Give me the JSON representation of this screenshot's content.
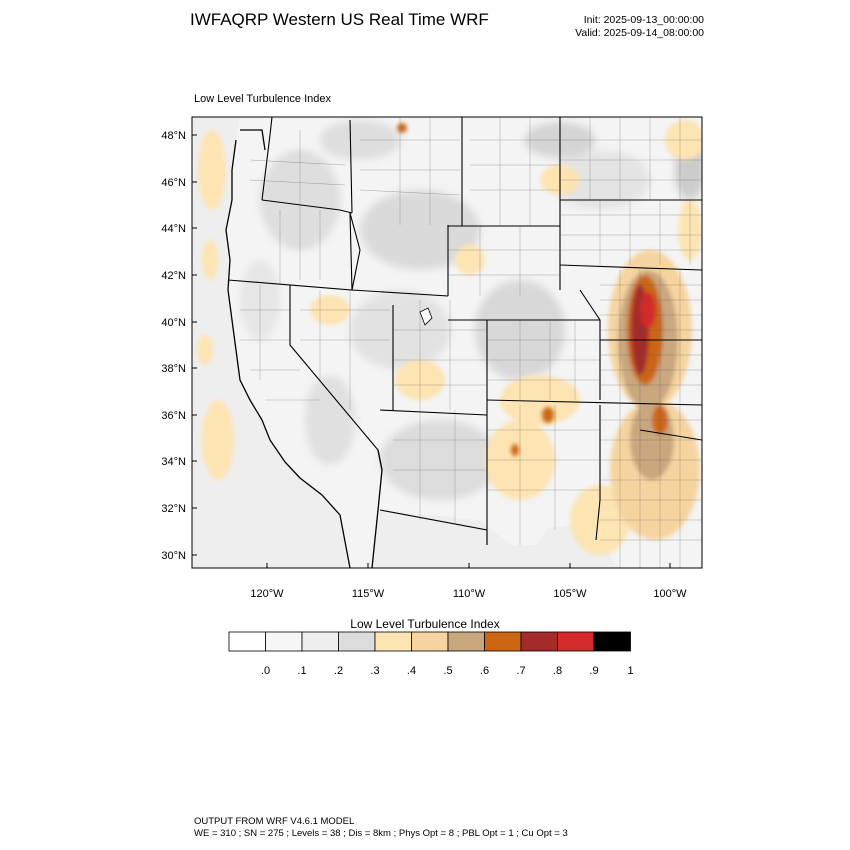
{
  "header": {
    "title": "IWFAQRP Western US Real Time WRF",
    "init": "Init: 2025-09-13_00:00:00",
    "valid": "Valid: 2025-09-14_08:00:00"
  },
  "plot": {
    "title": "Low Level Turbulence Index",
    "lat_labels": [
      "48°N",
      "46°N",
      "44°N",
      "42°N",
      "40°N",
      "38°N",
      "36°N",
      "34°N",
      "32°N",
      "30°N"
    ],
    "lon_labels": [
      "120°W",
      "115°W",
      "110°W",
      "105°W",
      "100°W"
    ]
  },
  "colorbar": {
    "title": "Low Level Turbulence Index",
    "labels": [
      ".0",
      ".1",
      ".2",
      ".3",
      ".4",
      ".5",
      ".6",
      ".7",
      ".8",
      ".9",
      "1"
    ],
    "colors": [
      "#ffffff",
      "#f7f7f7",
      "#eeeeee",
      "#dcdcdc",
      "#fde4b3",
      "#f6d4a0",
      "#c9a77f",
      "#cc6612",
      "#a52a2a",
      "#d42a2a",
      "#000000"
    ]
  },
  "footer": {
    "line1": "OUTPUT FROM WRF V4.6.1 MODEL",
    "line2": "WE = 310 ; SN = 275 ; Levels = 38 ; Dis = 8km ; Phys Opt = 8 ; PBL Opt = 1 ; Cu Opt = 3"
  }
}
